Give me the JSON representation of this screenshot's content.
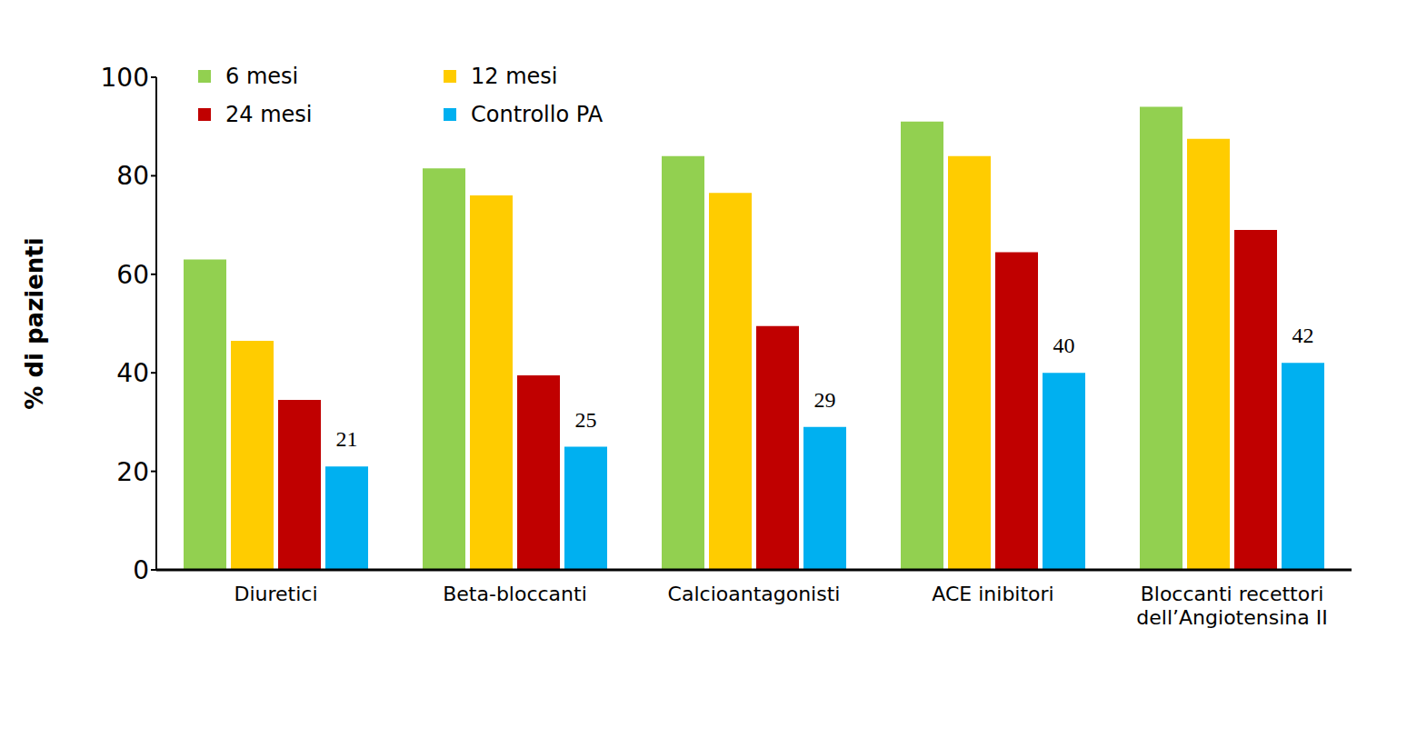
{
  "chart_data": {
    "type": "bar",
    "y_label": "% di pazienti",
    "categories": [
      "Diuretici",
      "Beta-bloccanti",
      "Calcioantagonisti",
      "ACE inibitori",
      "Bloccanti recettori dell’Angiotensina II"
    ],
    "series": [
      {
        "name": "6 mesi",
        "color": "#92d050",
        "values": [
          63,
          81.5,
          84,
          91,
          94
        ]
      },
      {
        "name": "12 mesi",
        "color": "#ffcc00",
        "values": [
          46.5,
          76,
          76.5,
          84,
          87.5
        ]
      },
      {
        "name": "24 mesi",
        "color": "#c00000",
        "values": [
          34.5,
          39.5,
          49.5,
          64.5,
          69
        ]
      },
      {
        "name": "Controllo PA",
        "color": "#00b0f0",
        "values": [
          21,
          25,
          29,
          40,
          42
        ],
        "data_labels": true
      }
    ],
    "ylim": [
      0,
      100
    ],
    "yticks": [
      0,
      20,
      40,
      60,
      80,
      100
    ],
    "grid": false,
    "legend": "upper left"
  }
}
